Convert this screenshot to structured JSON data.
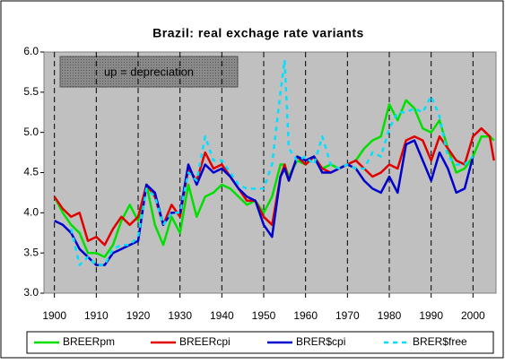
{
  "chart_data": {
    "type": "line",
    "title": "Brazil: real exchage rate variants",
    "annotation": "up = depreciation",
    "x": [
      1900,
      1902,
      1904,
      1906,
      1908,
      1910,
      1912,
      1914,
      1916,
      1918,
      1920,
      1922,
      1924,
      1926,
      1928,
      1930,
      1932,
      1934,
      1936,
      1938,
      1940,
      1942,
      1944,
      1946,
      1948,
      1950,
      1952,
      1954,
      1955,
      1956,
      1958,
      1960,
      1962,
      1964,
      1966,
      1968,
      1970,
      1972,
      1974,
      1976,
      1978,
      1980,
      1982,
      1984,
      1986,
      1988,
      1990,
      1992,
      1994,
      1996,
      1998,
      2000,
      2002,
      2004,
      2005
    ],
    "series": [
      {
        "name": "BREERpm",
        "color": "#00e000",
        "line_style": "solid",
        "values": [
          4.2,
          4.0,
          3.85,
          3.75,
          3.5,
          3.5,
          3.45,
          3.6,
          3.9,
          4.1,
          3.9,
          4.35,
          3.85,
          3.6,
          3.95,
          3.75,
          4.35,
          3.95,
          4.2,
          4.25,
          4.35,
          4.3,
          4.2,
          4.1,
          4.15,
          4.0,
          4.2,
          4.6,
          4.6,
          4.45,
          4.65,
          4.6,
          4.7,
          4.55,
          4.6,
          4.55,
          4.6,
          4.65,
          4.8,
          4.9,
          4.95,
          5.35,
          5.15,
          5.4,
          5.3,
          5.05,
          5.0,
          5.15,
          4.8,
          4.5,
          4.55,
          4.7,
          4.95,
          4.95,
          4.9
        ]
      },
      {
        "name": "BREERcpi",
        "color": "#e00000",
        "line_style": "solid",
        "values": [
          4.2,
          4.05,
          3.95,
          4.0,
          3.65,
          3.7,
          3.6,
          3.8,
          3.95,
          3.85,
          3.95,
          4.35,
          4.2,
          3.85,
          4.1,
          3.95,
          4.55,
          4.4,
          4.75,
          4.55,
          4.6,
          4.45,
          4.3,
          4.15,
          4.15,
          3.95,
          3.85,
          4.45,
          4.6,
          4.4,
          4.7,
          4.6,
          4.7,
          4.55,
          4.5,
          4.55,
          4.6,
          4.65,
          4.55,
          4.45,
          4.5,
          4.6,
          4.55,
          4.9,
          4.95,
          4.9,
          4.65,
          4.95,
          4.8,
          4.65,
          4.6,
          4.95,
          5.05,
          4.95,
          4.65
        ]
      },
      {
        "name": "BRER$cpi",
        "color": "#0000cc",
        "line_style": "solid",
        "values": [
          3.9,
          3.85,
          3.75,
          3.55,
          3.45,
          3.35,
          3.35,
          3.5,
          3.55,
          3.6,
          3.65,
          4.35,
          4.25,
          3.85,
          4.0,
          4.0,
          4.6,
          4.35,
          4.6,
          4.5,
          4.55,
          4.45,
          4.3,
          4.2,
          4.15,
          3.85,
          3.7,
          4.45,
          4.55,
          4.4,
          4.7,
          4.65,
          4.7,
          4.5,
          4.5,
          4.55,
          4.6,
          4.55,
          4.4,
          4.3,
          4.25,
          4.45,
          4.25,
          4.85,
          4.9,
          4.65,
          4.4,
          4.75,
          4.55,
          4.25,
          4.3,
          4.7,
          null,
          null,
          null
        ]
      },
      {
        "name": "BRER$free",
        "color": "#00e0ff",
        "line_style": "dashed",
        "values": [
          null,
          null,
          3.8,
          3.35,
          3.45,
          3.35,
          3.35,
          3.55,
          3.6,
          3.6,
          3.7,
          4.3,
          4.2,
          3.85,
          4.0,
          4.0,
          4.5,
          4.4,
          4.95,
          4.65,
          4.65,
          4.5,
          4.35,
          4.3,
          4.3,
          4.3,
          4.6,
          5.5,
          5.9,
          4.8,
          4.65,
          4.7,
          4.6,
          4.95,
          4.6,
          4.55,
          4.6,
          4.55,
          4.55,
          4.75,
          4.7,
          5.05,
          5.25,
          5.25,
          5.3,
          5.25,
          5.45,
          5.2,
          4.7,
          4.6,
          4.6,
          4.7,
          null,
          null,
          null
        ]
      }
    ],
    "xlim": [
      1897.5,
      2005.5
    ],
    "xticks": [
      1900,
      1910,
      1920,
      1930,
      1940,
      1950,
      1960,
      1970,
      1980,
      1990,
      2000
    ],
    "ylim": [
      3,
      6
    ],
    "yticks": [
      {
        "value": 3,
        "label": "3.0"
      },
      3.5,
      {
        "value": 4,
        "label": "4.0"
      },
      4.5,
      {
        "value": 5,
        "label": "5.0"
      },
      5.5,
      {
        "value": 6,
        "label": "6.0"
      }
    ],
    "grid": true,
    "legend": "bottom"
  }
}
